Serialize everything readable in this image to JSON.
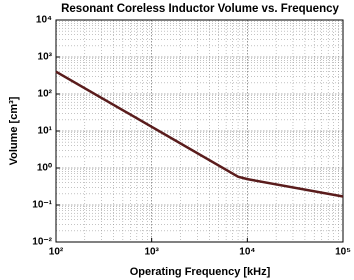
{
  "chart_data": {
    "type": "line",
    "title": "Resonant Coreless Inductor Volume vs. Frequency",
    "x_label": "Operating Frequency [kHz]",
    "y_label": "Volume [cm³]",
    "x": [
      100,
      1000,
      8000,
      10000,
      100000
    ],
    "series": [
      {
        "name": "Volume",
        "color": "#5a1c1c",
        "values": [
          400,
          13,
          0.58,
          0.5,
          0.17
        ]
      }
    ],
    "xscale": "log",
    "yscale": "log",
    "grid": true,
    "xlim": [
      100,
      100000
    ],
    "xticks": [
      {
        "value": 100,
        "label": "10²"
      },
      {
        "value": 1000,
        "label": "10³"
      },
      {
        "value": 10000,
        "label": "10⁴"
      },
      {
        "value": 100000,
        "label": "10⁵"
      }
    ],
    "ylim": [
      0.01,
      10000
    ],
    "yticks": [
      {
        "value": 0.01,
        "label": "10⁻²"
      },
      {
        "value": 0.1,
        "label": "10⁻¹"
      },
      {
        "value": 1,
        "label": "10⁰"
      },
      {
        "value": 10,
        "label": "10¹"
      },
      {
        "value": 100,
        "label": "10²"
      },
      {
        "value": 1000,
        "label": "10³"
      },
      {
        "value": 10000,
        "label": "10⁴"
      }
    ]
  }
}
